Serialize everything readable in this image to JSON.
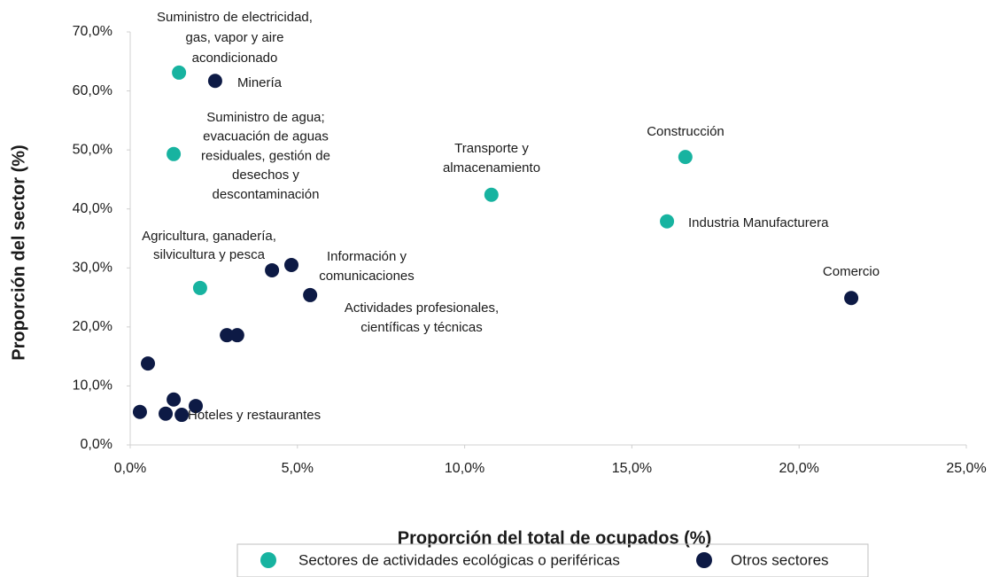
{
  "chart_data": {
    "type": "scatter",
    "xlabel": "Proporción del total de ocupados (%)",
    "ylabel": "Proporción del sector (%)",
    "xlim": [
      0,
      25
    ],
    "ylim": [
      0,
      70
    ],
    "xticks": [
      {
        "value": 0,
        "label": "0,0%"
      },
      {
        "value": 5,
        "label": "5,0%"
      },
      {
        "value": 10,
        "label": "10,0%"
      },
      {
        "value": 15,
        "label": "15,0%"
      },
      {
        "value": 20,
        "label": "20,0%"
      },
      {
        "value": 25,
        "label": "25,0%"
      }
    ],
    "yticks": [
      {
        "value": 0,
        "label": "0,0%"
      },
      {
        "value": 10,
        "label": "10,0%"
      },
      {
        "value": 20,
        "label": "20,0%"
      },
      {
        "value": 30,
        "label": "30,0%"
      },
      {
        "value": 40,
        "label": "40,0%"
      },
      {
        "value": 50,
        "label": "50,0%"
      },
      {
        "value": 60,
        "label": "60,0%"
      },
      {
        "value": 70,
        "label": "70,0%"
      }
    ],
    "series": [
      {
        "name": "Sectores de actividades ecológicas o periféricas",
        "color": "#17b3a0",
        "x": [
          1.46,
          1.3,
          2.09,
          10.8,
          16.6,
          16.05
        ],
        "values": [
          63.1,
          49.3,
          26.6,
          42.4,
          48.8,
          37.9
        ]
      },
      {
        "name": "Otros sectores",
        "color": "#0d1a45",
        "x": [
          2.54,
          4.24,
          4.82,
          5.38,
          2.89,
          3.2,
          0.53,
          0.29,
          1.06,
          1.3,
          1.54,
          1.96,
          21.56
        ],
        "values": [
          61.7,
          29.6,
          30.5,
          25.4,
          18.6,
          18.6,
          13.8,
          5.6,
          5.3,
          7.7,
          5.1,
          6.6,
          24.9
        ]
      }
    ],
    "annotations": [
      [
        "Suministro de electricidad,",
        "gas, vapor y aire",
        "acondicionado"
      ],
      [
        "Minería"
      ],
      [
        "Suministro de agua;",
        "evacuación de aguas",
        "residuales, gestión de",
        "desechos y",
        "descontaminación"
      ],
      [
        "Transporte y",
        "almacenamiento"
      ],
      [
        "Construcción"
      ],
      [
        "Industria Manufacturera"
      ],
      [
        "Agricultura, ganadería,",
        "silvicultura y pesca"
      ],
      [
        "Información y",
        "comunicaciones"
      ],
      [
        "Actividades profesionales,",
        "científicas y técnicas"
      ],
      [
        "Comercio"
      ],
      [
        "Hoteles y restaurantes"
      ]
    ]
  }
}
